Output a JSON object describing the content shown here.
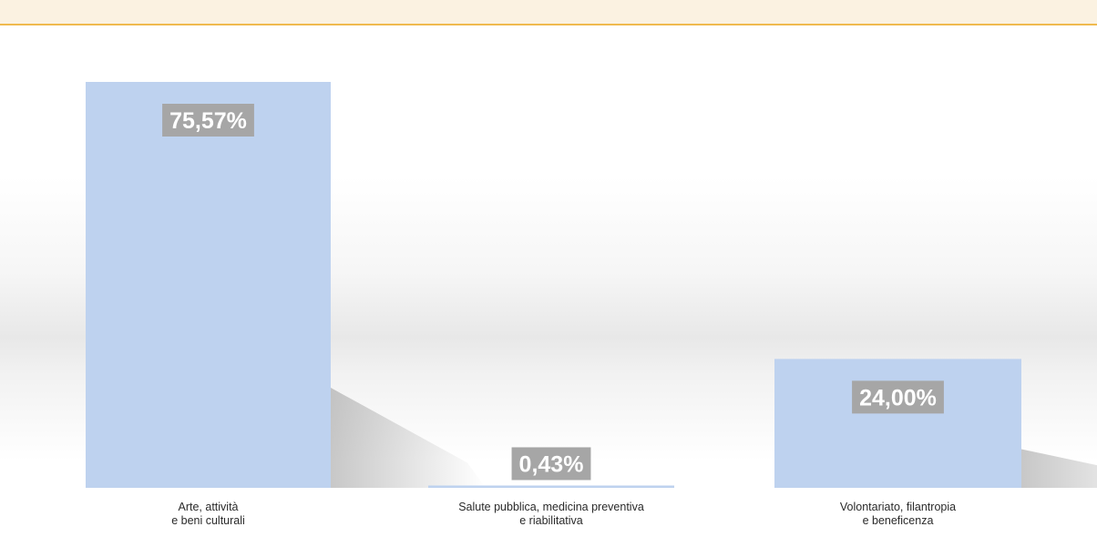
{
  "chart_data": {
    "type": "bar",
    "categories": [
      [
        "Arte, attività",
        "e beni culturali"
      ],
      [
        "Salute pubblica, medicina preventiva",
        "e riabilitativa"
      ],
      [
        "Volontariato, filantropia",
        "e beneficenza"
      ]
    ],
    "values": [
      75.57,
      0.43,
      24.0
    ],
    "data_labels": [
      "75,57%",
      "0,43%",
      "24,00%"
    ],
    "title": "",
    "xlabel": "",
    "ylabel": "",
    "ylim": [
      0,
      75.57
    ],
    "grid": false,
    "legend": "none",
    "colors": {
      "bar": "#bed2ef",
      "label_box": "#a6a6a6",
      "label_text": "#ffffff",
      "accent_line": "#f0ba4e",
      "top_band": "#fbf2e1"
    }
  }
}
